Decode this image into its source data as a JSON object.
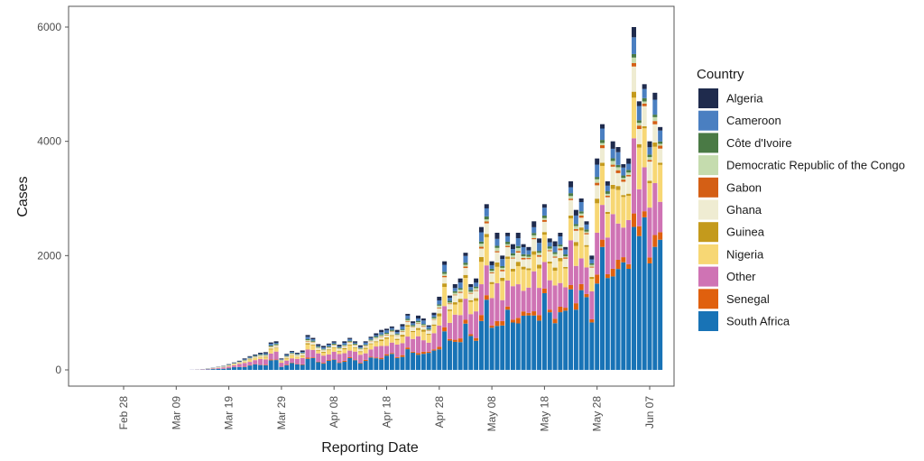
{
  "chart_data": {
    "type": "bar",
    "stacked": true,
    "xlabel": "Reporting Date",
    "ylabel": "Cases",
    "ylim": [
      0,
      6300
    ],
    "y_ticks": [
      0,
      2000,
      4000,
      6000
    ],
    "x_ticks": [
      "Feb 28",
      "Mar 09",
      "Mar 19",
      "Mar 29",
      "Apr 08",
      "Apr 18",
      "Apr 28",
      "May 08",
      "May 18",
      "May 28",
      "Jun 07"
    ],
    "x_start": "Feb 28",
    "grid": false,
    "legend": {
      "title": "Country",
      "placement": "right",
      "entries": [
        "Algeria",
        "Cameroon",
        "Côte d'Ivoire",
        "Democratic Republic of the Congo",
        "Gabon",
        "Ghana",
        "Guinea",
        "Nigeria",
        "Other",
        "Senegal",
        "South Africa"
      ]
    },
    "colors": {
      "Algeria": "#1f2b4d",
      "Cameroon": "#4a7fc1",
      "Côte d'Ivoire": "#4a7a45",
      "Democratic Republic of the Congo": "#c5dcae",
      "Gabon": "#d45f15",
      "Ghana": "#efecd2",
      "Guinea": "#c49a1c",
      "Nigeria": "#f7d774",
      "Other": "#cf73b4",
      "Senegal": "#e0600e",
      "South Africa": "#1873b6"
    },
    "bar_totals": [
      [
        "Mar 12",
        5
      ],
      [
        "Mar 13",
        10
      ],
      [
        "Mar 14",
        15
      ],
      [
        "Mar 15",
        25
      ],
      [
        "Mar 16",
        40
      ],
      [
        "Mar 17",
        55
      ],
      [
        "Mar 18",
        70
      ],
      [
        "Mar 19",
        100
      ],
      [
        "Mar 20",
        130
      ],
      [
        "Mar 21",
        160
      ],
      [
        "Mar 22",
        200
      ],
      [
        "Mar 23",
        240
      ],
      [
        "Mar 24",
        270
      ],
      [
        "Mar 25",
        300
      ],
      [
        "Mar 26",
        310
      ],
      [
        "Mar 27",
        480
      ],
      [
        "Mar 28",
        500
      ],
      [
        "Mar 29",
        200
      ],
      [
        "Mar 30",
        280
      ],
      [
        "Mar 31",
        330
      ],
      [
        "Apr 01",
        300
      ],
      [
        "Apr 02",
        340
      ],
      [
        "Apr 03",
        610
      ],
      [
        "Apr 04",
        560
      ],
      [
        "Apr 05",
        450
      ],
      [
        "Apr 06",
        420
      ],
      [
        "Apr 07",
        460
      ],
      [
        "Apr 08",
        500
      ],
      [
        "Apr 09",
        440
      ],
      [
        "Apr 10",
        500
      ],
      [
        "Apr 11",
        560
      ],
      [
        "Apr 12",
        500
      ],
      [
        "Apr 13",
        430
      ],
      [
        "Apr 14",
        500
      ],
      [
        "Apr 15",
        580
      ],
      [
        "Apr 16",
        640
      ],
      [
        "Apr 17",
        700
      ],
      [
        "Apr 18",
        720
      ],
      [
        "Apr 19",
        760
      ],
      [
        "Apr 20",
        700
      ],
      [
        "Apr 21",
        800
      ],
      [
        "Apr 22",
        980
      ],
      [
        "Apr 23",
        850
      ],
      [
        "Apr 24",
        950
      ],
      [
        "Apr 25",
        900
      ],
      [
        "Apr 26",
        780
      ],
      [
        "Apr 27",
        1000
      ],
      [
        "Apr 28",
        1280
      ],
      [
        "Apr 29",
        1900
      ],
      [
        "Apr 30",
        1300
      ],
      [
        "May 01",
        1500
      ],
      [
        "May 02",
        1600
      ],
      [
        "May 03",
        2050
      ],
      [
        "May 04",
        1500
      ],
      [
        "May 05",
        1600
      ],
      [
        "May 06",
        2500
      ],
      [
        "May 07",
        2900
      ],
      [
        "May 08",
        1900
      ],
      [
        "May 09",
        2400
      ],
      [
        "May 10",
        2000
      ],
      [
        "May 11",
        2400
      ],
      [
        "May 12",
        2200
      ],
      [
        "May 13",
        2400
      ],
      [
        "May 14",
        2200
      ],
      [
        "May 15",
        2150
      ],
      [
        "May 16",
        2600
      ],
      [
        "May 17",
        2300
      ],
      [
        "May 18",
        2900
      ],
      [
        "May 19",
        2300
      ],
      [
        "May 20",
        2250
      ],
      [
        "May 21",
        2400
      ],
      [
        "May 22",
        2150
      ],
      [
        "May 23",
        3300
      ],
      [
        "May 24",
        2800
      ],
      [
        "May 25",
        3000
      ],
      [
        "May 26",
        2600
      ],
      [
        "May 27",
        2000
      ],
      [
        "May 28",
        3700
      ],
      [
        "May 29",
        4300
      ],
      [
        "May 30",
        3300
      ],
      [
        "May 31",
        4000
      ],
      [
        "Jun 01",
        3900
      ],
      [
        "Jun 02",
        3600
      ],
      [
        "Jun 03",
        3700
      ],
      [
        "Jun 04",
        6000
      ],
      [
        "Jun 05",
        4700
      ],
      [
        "Jun 06",
        5000
      ],
      [
        "Jun 07",
        4000
      ],
      [
        "Jun 08",
        4850
      ],
      [
        "Jun 09",
        4250
      ]
    ],
    "composition": {
      "note_order": [
        "South Africa",
        "Senegal",
        "Other",
        "Nigeria",
        "Guinea",
        "Ghana",
        "Gabon",
        "Democratic Republic of the Congo",
        "Côte d'Ivoire",
        "Cameroon",
        "Algeria"
      ],
      "early_share": [
        0.3,
        0.02,
        0.3,
        0.1,
        0.03,
        0.05,
        0.01,
        0.03,
        0.04,
        0.05,
        0.07
      ],
      "mid_share": [
        0.33,
        0.03,
        0.25,
        0.15,
        0.03,
        0.07,
        0.01,
        0.02,
        0.02,
        0.05,
        0.04
      ],
      "late_share": [
        0.5,
        0.03,
        0.17,
        0.13,
        0.01,
        0.07,
        0.01,
        0.01,
        0.01,
        0.04,
        0.02
      ]
    }
  }
}
